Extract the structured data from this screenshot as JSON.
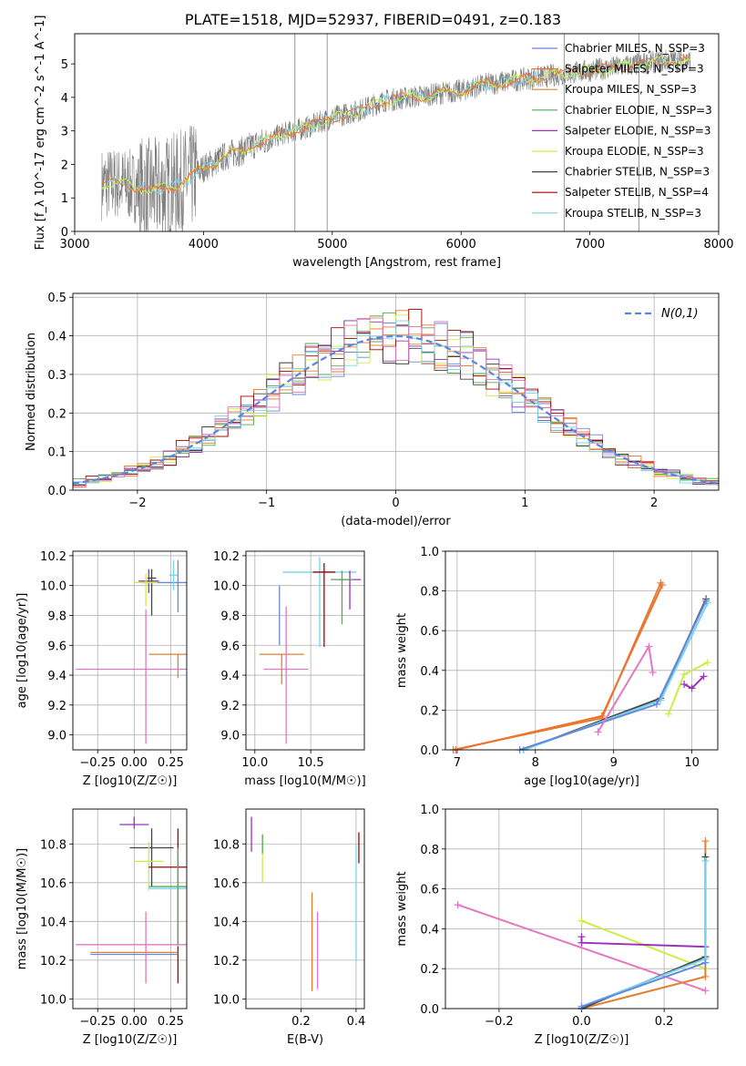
{
  "title": "PLATE=1518, MJD=52937, FIBERID=0491, z=0.183",
  "colors": {
    "Chabrier MILES": "#6688dd",
    "Salpeter MILES": "#f07030",
    "Kroupa MILES": "#e08030",
    "Chabrier ELODIE": "#55aa55",
    "Salpeter ELODIE": "#9933bb",
    "Kroupa ELODIE": "#ccee44",
    "Chabrier STELIB": "#444444",
    "Salpeter STELIB": "#aa0000",
    "Kroupa STELIB": "#77d4e8",
    "observed": "#808080",
    "gaussian": "#5588dd",
    "pink": "#e377c2"
  },
  "chart_data": [
    {
      "id": "spectrum",
      "type": "line",
      "xlabel": "wavelength [Angstrom, rest frame]",
      "ylabel": "Flux [f_λ 10^-17 erg cm^-2 s^-1 A^-1]",
      "xlim": [
        3000,
        8000
      ],
      "ylim": [
        0,
        5.9
      ],
      "xticks": [
        "3000",
        "4000",
        "5000",
        "6000",
        "7000",
        "8000"
      ],
      "yticks": [
        "0",
        "1",
        "2",
        "3",
        "4",
        "5"
      ],
      "grid": false,
      "legend_position": "top-right",
      "legend": [
        "Chabrier MILES, N_SSP=3",
        "Salpeter MILES, N_SSP=3",
        "Kroupa MILES, N_SSP=3",
        "Chabrier ELODIE, N_SSP=3",
        "Salpeter ELODIE, N_SSP=3",
        "Kroupa ELODIE, N_SSP=3",
        "Chabrier STELIB, N_SSP=3",
        "Salpeter STELIB, N_SSP=4",
        "Kroupa STELIB, N_SSP=3"
      ],
      "model_continuum": {
        "x": [
          3200,
          3300,
          3400,
          3500,
          3600,
          3700,
          3800,
          3900,
          4000,
          4100,
          4200,
          4300,
          4400,
          4500,
          4600,
          4800,
          5000,
          5200,
          5400,
          5600,
          5800,
          6000,
          6200,
          6400,
          6600,
          6800,
          7000,
          7200,
          7400,
          7600,
          7800
        ],
        "y": [
          1.4,
          1.45,
          1.4,
          1.3,
          1.2,
          1.3,
          1.4,
          1.6,
          1.9,
          2.1,
          2.3,
          2.4,
          2.6,
          2.7,
          2.9,
          3.1,
          3.4,
          3.6,
          3.9,
          4.0,
          4.1,
          4.2,
          4.4,
          4.5,
          4.6,
          4.7,
          4.8,
          4.9,
          5.0,
          5.1,
          5.1
        ]
      }
    },
    {
      "id": "residuals",
      "type": "line",
      "xlabel": "(data-model)/error",
      "ylabel": "Normed distribution",
      "xlim": [
        -2.5,
        2.5
      ],
      "ylim": [
        0,
        0.51
      ],
      "xticks": [
        "−2",
        "−1",
        "0",
        "1",
        "2"
      ],
      "yticks": [
        "0.0",
        "0.1",
        "0.2",
        "0.3",
        "0.4",
        "0.5"
      ],
      "grid": true,
      "legend_position": "top-right",
      "legend": [
        "N(0,1)"
      ],
      "gaussian": {
        "mean": 0,
        "sigma": 1
      }
    },
    {
      "id": "age_vs_Z",
      "type": "scatter",
      "xlabel": "Z [log10(Z/Z☉)]",
      "ylabel": "age [log10(age/yr)]",
      "xlim": [
        -0.42,
        0.36
      ],
      "ylim": [
        8.9,
        10.23
      ],
      "xticks": [
        "−0.25",
        "0.00",
        "0.25"
      ],
      "yticks": [
        "9.0",
        "9.2",
        "9.4",
        "9.6",
        "9.8",
        "10.0",
        "10.2"
      ],
      "grid": true,
      "points": [
        {
          "x": 0.1,
          "y": 10.03,
          "xerr": 0.07,
          "yerr": [
            0.08,
            0.08
          ],
          "color": "Salpeter ELODIE"
        },
        {
          "x": 0.12,
          "y": 10.05,
          "xerr": 0.03,
          "yerr": [
            0.25,
            0.06
          ],
          "color": "Chabrier STELIB"
        },
        {
          "x": 0.3,
          "y": 10.02,
          "xerr": 0.25,
          "yerr": [
            0.2,
            0.15
          ],
          "color": "Chabrier MILES"
        },
        {
          "x": 0.08,
          "y": 10.02,
          "xerr": 0.08,
          "yerr": [
            0.16,
            0.06
          ],
          "color": "Kroupa ELODIE"
        },
        {
          "x": 0.27,
          "y": 10.07,
          "xerr": 0.03,
          "yerr": [
            0.1,
            0.1
          ],
          "color": "Kroupa STELIB"
        },
        {
          "x": 0.3,
          "y": 9.54,
          "xerr": 0.2,
          "yerr": [
            0.16,
            0.0
          ],
          "color": "Kroupa MILES"
        },
        {
          "x": 0.08,
          "y": 9.44,
          "xerr": 0.48,
          "yerr": [
            0.5,
            0.4
          ],
          "color": "pink"
        }
      ]
    },
    {
      "id": "age_vs_mass",
      "type": "scatter",
      "xlabel": "mass [log10(M/M☉)]",
      "ylabel": "",
      "xlim": [
        9.92,
        10.98
      ],
      "ylim": [
        8.9,
        10.23
      ],
      "xticks": [
        "10.0",
        "10.5"
      ],
      "yticks": [
        "9.0",
        "9.2",
        "9.4",
        "9.6",
        "9.8",
        "10.0",
        "10.2"
      ],
      "grid": true,
      "points": [
        {
          "x": 10.58,
          "y": 10.09,
          "xerr": 0.33,
          "yerr": [
            0.5,
            0.1
          ],
          "color": "Kroupa STELIB"
        },
        {
          "x": 10.62,
          "y": 10.09,
          "xerr": 0.1,
          "yerr": [
            0.5,
            0.06
          ],
          "color": "Salpeter STELIB"
        },
        {
          "x": 10.85,
          "y": 10.04,
          "xerr": 0.1,
          "yerr": [
            0.2,
            0.06
          ],
          "color": "Salpeter ELODIE"
        },
        {
          "x": 10.78,
          "y": 10.04,
          "xerr": 0.1,
          "yerr": [
            0.3,
            0.06
          ],
          "color": "Chabrier ELODIE"
        },
        {
          "x": 10.22,
          "y": 10.0,
          "xerr": 0.0,
          "yerr": [
            0.4,
            0.0
          ],
          "color": "Chabrier MILES"
        },
        {
          "x": 10.24,
          "y": 9.54,
          "xerr": 0.2,
          "yerr": [
            0.2,
            0.0
          ],
          "color": "Kroupa MILES"
        },
        {
          "x": 10.28,
          "y": 9.44,
          "xerr": 0.2,
          "yerr": [
            0.5,
            0.42
          ],
          "color": "pink"
        }
      ]
    },
    {
      "id": "massweight_vs_age",
      "type": "line",
      "xlabel": "age [log10(age/yr)]",
      "ylabel": "mass weight",
      "xlim": [
        6.85,
        10.33
      ],
      "ylim": [
        0.0,
        1.0
      ],
      "xticks": [
        "7",
        "8",
        "9",
        "10"
      ],
      "yticks": [
        "0.0",
        "0.2",
        "0.4",
        "0.6",
        "0.8",
        "1.0"
      ],
      "grid": true,
      "series": [
        {
          "color": "Kroupa MILES",
          "x": [
            6.95,
            8.85,
            9.6
          ],
          "y": [
            0.0,
            0.16,
            0.84
          ]
        },
        {
          "color": "Salpeter MILES",
          "x": [
            6.98,
            8.85,
            9.62
          ],
          "y": [
            0.0,
            0.17,
            0.83
          ]
        },
        {
          "color": "Chabrier STELIB",
          "x": [
            7.85,
            9.6,
            10.18
          ],
          "y": [
            0.0,
            0.26,
            0.76
          ]
        },
        {
          "color": "Kroupa STELIB",
          "x": [
            7.85,
            9.6,
            10.2
          ],
          "y": [
            0.0,
            0.25,
            0.74
          ]
        },
        {
          "color": "Chabrier MILES",
          "x": [
            7.8,
            9.55,
            10.18
          ],
          "y": [
            0.0,
            0.23,
            0.75
          ]
        },
        {
          "color": "pink",
          "x": [
            8.8,
            9.45,
            9.5
          ],
          "y": [
            0.09,
            0.52,
            0.39
          ]
        },
        {
          "color": "Kroupa ELODIE",
          "x": [
            9.7,
            9.9,
            10.2
          ],
          "y": [
            0.18,
            0.38,
            0.44
          ]
        },
        {
          "color": "Salpeter ELODIE",
          "x": [
            9.9,
            10.0,
            10.15
          ],
          "y": [
            0.33,
            0.31,
            0.37
          ]
        }
      ]
    },
    {
      "id": "mass_vs_Z",
      "type": "scatter",
      "xlabel": "Z [log10(Z/Z☉)]",
      "ylabel": "mass [log10(M/M☉)]",
      "xlim": [
        -0.42,
        0.36
      ],
      "ylim": [
        9.95,
        10.98
      ],
      "xticks": [
        "−0.25",
        "0.00",
        "0.25"
      ],
      "yticks": [
        "10.0",
        "10.2",
        "10.4",
        "10.6",
        "10.8"
      ],
      "grid": true,
      "points": [
        {
          "x": 0.0,
          "y": 10.9,
          "xerr": 0.1,
          "yerr": [
            0.02,
            0.04
          ],
          "color": "Salpeter ELODIE"
        },
        {
          "x": 0.12,
          "y": 10.78,
          "xerr": 0.15,
          "yerr": [
            0.2,
            0.1
          ],
          "color": "Chabrier STELIB"
        },
        {
          "x": 0.1,
          "y": 10.71,
          "xerr": 0.1,
          "yerr": [
            0.15,
            0.1
          ],
          "color": "Kroupa ELODIE"
        },
        {
          "x": 0.3,
          "y": 10.68,
          "xerr": 0.2,
          "yerr": [
            0.6,
            0.2
          ],
          "color": "Salpeter STELIB"
        },
        {
          "x": 0.3,
          "y": 10.57,
          "xerr": 0.2,
          "yerr": [
            0.3,
            0.2
          ],
          "color": "Kroupa STELIB"
        },
        {
          "x": 0.3,
          "y": 10.58,
          "xerr": 0.2,
          "yerr": [
            0.3,
            0.2
          ],
          "color": "Chabrier ELODIE"
        },
        {
          "x": 0.0,
          "y": 10.24,
          "xerr": 0.3,
          "yerr": [
            0.0,
            0.0
          ],
          "color": "Kroupa MILES"
        },
        {
          "x": 0.0,
          "y": 10.23,
          "xerr": 0.3,
          "yerr": [
            0.0,
            0.0
          ],
          "color": "Chabrier MILES"
        },
        {
          "x": 0.08,
          "y": 10.28,
          "xerr": 0.48,
          "yerr": [
            0.2,
            0.17
          ],
          "color": "pink"
        }
      ]
    },
    {
      "id": "mass_vs_ebv",
      "type": "scatter",
      "xlabel": "E(B-V)",
      "ylabel": "",
      "xlim": [
        0.0,
        0.43
      ],
      "ylim": [
        9.95,
        10.98
      ],
      "xticks": [
        "0.2",
        "0.4"
      ],
      "yticks": [
        "10.0",
        "10.2",
        "10.4",
        "10.6",
        "10.8"
      ],
      "grid": true,
      "points": [
        {
          "x": 0.02,
          "y": 10.86,
          "xerr": 0.0,
          "yerr": [
            0.1,
            0.08
          ],
          "color": "Salpeter ELODIE"
        },
        {
          "x": 0.06,
          "y": 10.75,
          "xerr": 0.0,
          "yerr": [
            0.15,
            0.1
          ],
          "color": "Kroupa ELODIE"
        },
        {
          "x": 0.06,
          "y": 10.8,
          "xerr": 0.0,
          "yerr": [
            0.05,
            0.05
          ],
          "color": "Chabrier ELODIE"
        },
        {
          "x": 0.41,
          "y": 10.8,
          "xerr": 0.0,
          "yerr": [
            0.1,
            0.06
          ],
          "color": "Salpeter STELIB"
        },
        {
          "x": 0.4,
          "y": 10.5,
          "xerr": 0.0,
          "yerr": [
            0.3,
            0.3
          ],
          "color": "Kroupa STELIB"
        },
        {
          "x": 0.24,
          "y": 10.3,
          "xerr": 0.0,
          "yerr": [
            0.26,
            0.25
          ],
          "color": "Kroupa MILES"
        },
        {
          "x": 0.26,
          "y": 10.15,
          "xerr": 0.0,
          "yerr": [
            0.1,
            0.3
          ],
          "color": "pink"
        }
      ]
    },
    {
      "id": "massweight_vs_Z",
      "type": "line",
      "xlabel": "Z [log10(Z/Z☉)]",
      "ylabel": "mass weight",
      "xlim": [
        -0.33,
        0.33
      ],
      "ylim": [
        0.0,
        1.0
      ],
      "xticks": [
        "−0.2",
        "0.0",
        "0.2"
      ],
      "yticks": [
        "0.0",
        "0.2",
        "0.4",
        "0.6",
        "0.8",
        "1.0"
      ],
      "grid": true,
      "series": [
        {
          "color": "pink",
          "x": [
            -0.3,
            0.3
          ],
          "y": [
            0.52,
            0.09
          ]
        },
        {
          "color": "Kroupa ELODIE",
          "x": [
            0.0,
            0.3
          ],
          "y": [
            0.44,
            0.2
          ]
        },
        {
          "color": "Salpeter ELODIE",
          "x": [
            0.0,
            0.0,
            0.3
          ],
          "y": [
            0.36,
            0.33,
            0.31
          ]
        },
        {
          "color": "Kroupa MILES",
          "x": [
            0.0,
            0.3,
            0.3
          ],
          "y": [
            0.0,
            0.16,
            0.84
          ]
        },
        {
          "color": "Chabrier STELIB",
          "x": [
            0.0,
            0.3,
            0.3
          ],
          "y": [
            0.0,
            0.26,
            0.76
          ]
        },
        {
          "color": "Kroupa STELIB",
          "x": [
            0.0,
            0.3,
            0.3
          ],
          "y": [
            0.01,
            0.25,
            0.74
          ]
        },
        {
          "color": "Chabrier MILES",
          "x": [
            0.0,
            0.3
          ],
          "y": [
            0.01,
            0.23
          ]
        }
      ]
    }
  ]
}
